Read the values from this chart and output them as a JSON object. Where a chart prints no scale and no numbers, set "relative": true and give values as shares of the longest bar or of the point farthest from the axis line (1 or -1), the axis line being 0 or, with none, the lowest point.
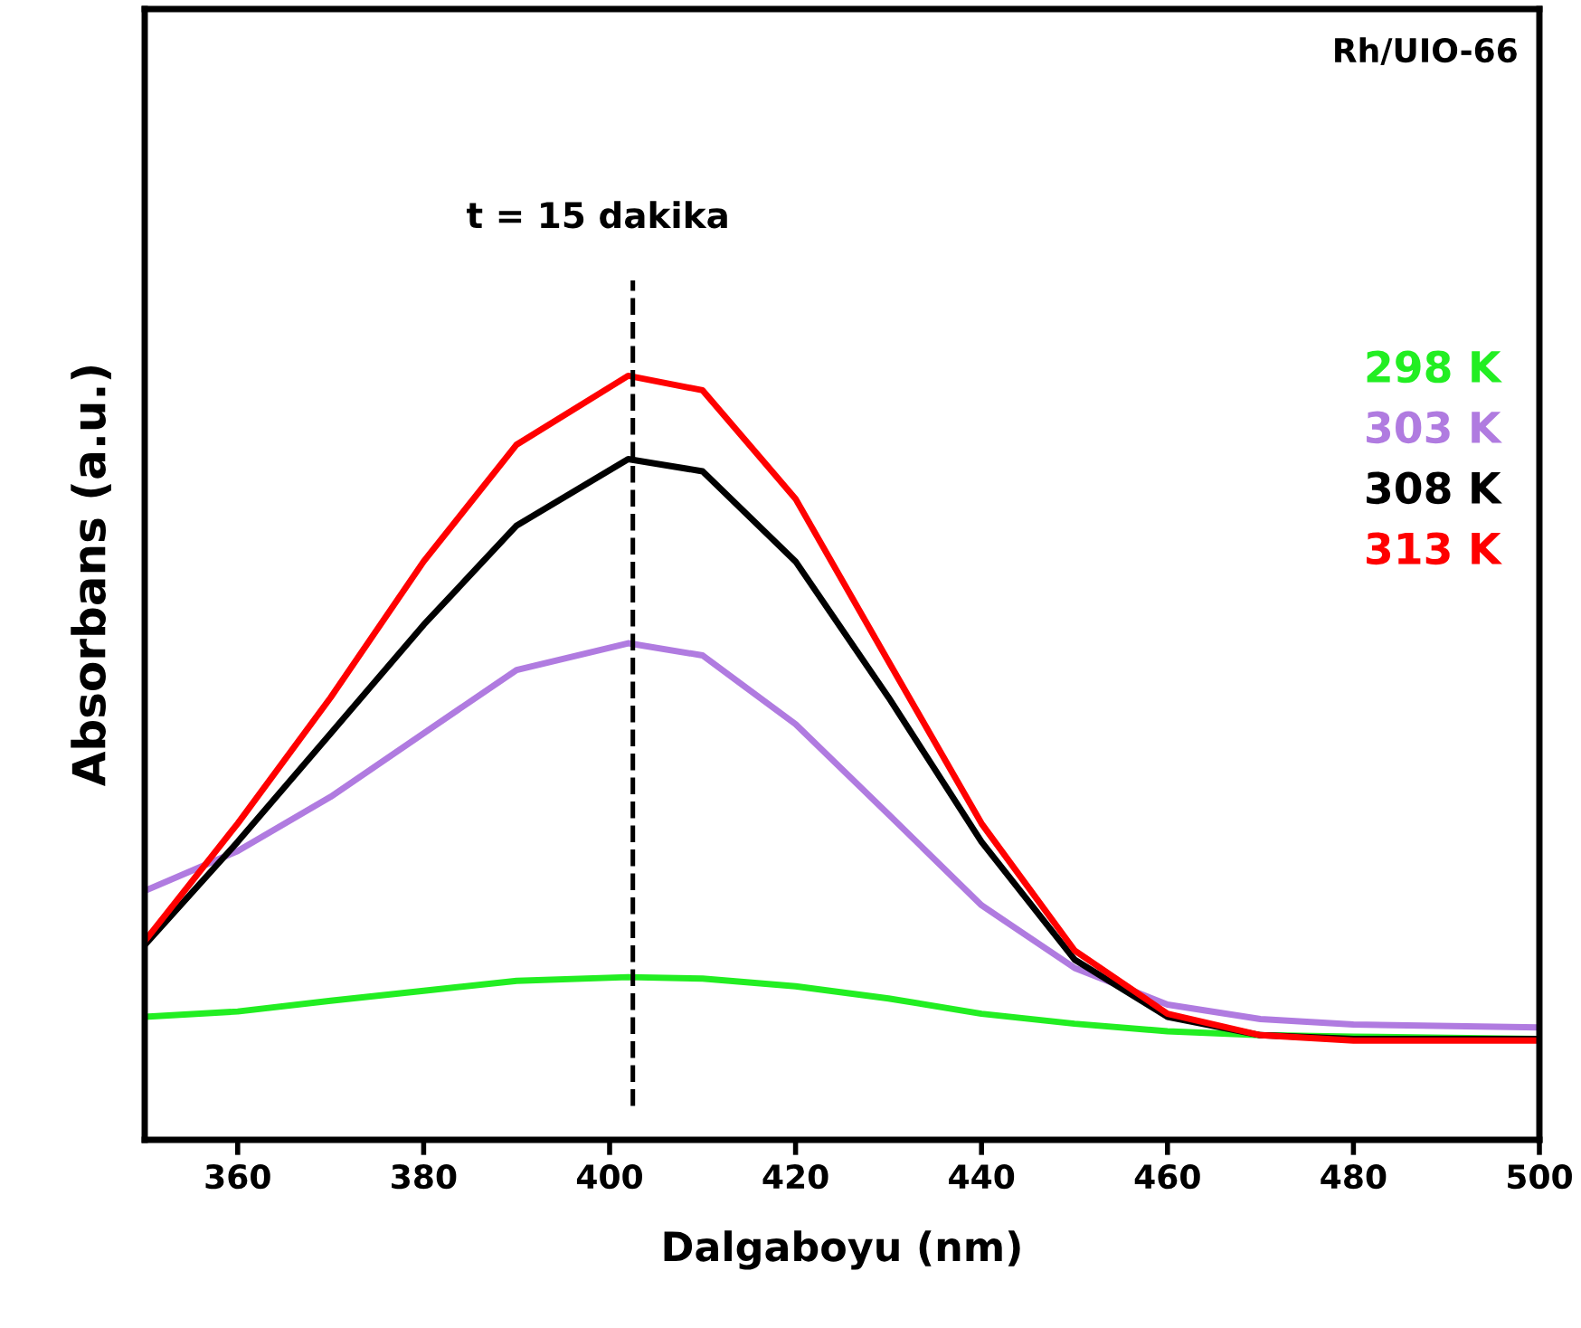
{
  "chart_data": {
    "type": "line",
    "xlabel": "Dalgaboyu (nm)",
    "ylabel": "Absorbans (a.u.)",
    "relative": true,
    "xlim": [
      350,
      500
    ],
    "xticks": [
      360,
      380,
      400,
      420,
      440,
      460,
      480,
      500
    ],
    "grid": false,
    "legend": "right",
    "line_style": "solid",
    "marker": "none",
    "x": [
      350,
      360,
      370,
      380,
      390,
      402,
      410,
      420,
      430,
      440,
      450,
      460,
      470,
      480,
      500
    ],
    "series": [
      {
        "name": "298 K",
        "color": "#22ee22",
        "values": [
          0.161,
          0.168,
          0.182,
          0.195,
          0.208,
          0.213,
          0.211,
          0.201,
          0.185,
          0.165,
          0.152,
          0.142,
          0.137,
          0.135,
          0.132
        ]
      },
      {
        "name": "303 K",
        "color": "#b07be0",
        "values": [
          0.326,
          0.378,
          0.449,
          0.532,
          0.615,
          0.65,
          0.634,
          0.544,
          0.426,
          0.307,
          0.225,
          0.177,
          0.158,
          0.151,
          0.147
        ]
      },
      {
        "name": "308 K",
        "color": "#000000",
        "values": [
          0.255,
          0.39,
          0.532,
          0.674,
          0.804,
          0.891,
          0.875,
          0.757,
          0.579,
          0.39,
          0.236,
          0.161,
          0.137,
          0.132,
          0.132
        ]
      },
      {
        "name": "313 K",
        "color": "#ff0000",
        "values": [
          0.26,
          0.414,
          0.579,
          0.757,
          0.91,
          1.0,
          0.981,
          0.839,
          0.626,
          0.414,
          0.248,
          0.165,
          0.137,
          0.13,
          0.13
        ]
      }
    ],
    "ref_lines": [
      {
        "axis": "x",
        "value": 402.5,
        "color": "#000000",
        "line_style": "dashed"
      }
    ],
    "annotations": [
      "Rh/UIO-66",
      "t = 15 dakika"
    ]
  }
}
